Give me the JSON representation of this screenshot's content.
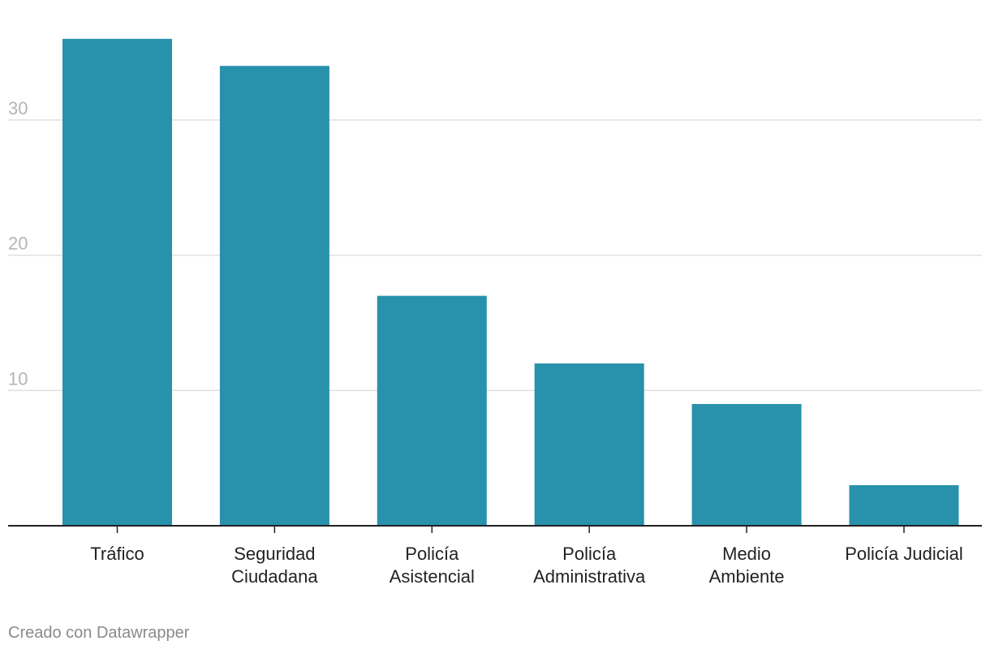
{
  "chart_data": {
    "type": "bar",
    "categories": [
      [
        "Tráfico"
      ],
      [
        "Seguridad",
        "Ciudadana"
      ],
      [
        "Policía",
        "Asistencial"
      ],
      [
        "Policía",
        "Administrativa"
      ],
      [
        "Medio",
        "Ambiente"
      ],
      [
        "Policía Judicial"
      ]
    ],
    "values": [
      36,
      34,
      17,
      12,
      9,
      3
    ],
    "yticks": [
      10,
      20,
      30
    ],
    "ylim": [
      0,
      38
    ],
    "grid": true,
    "bar_color": "#2891ab",
    "gridline_color": "#e0e0e0",
    "tick_label_color": "#b5b5b5",
    "axis_color": "#222222"
  },
  "footer": {
    "credit": "Creado con Datawrapper"
  }
}
